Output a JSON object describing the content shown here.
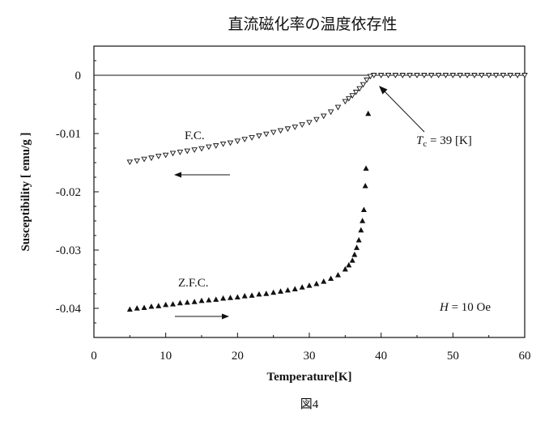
{
  "chart_data": {
    "type": "scatter",
    "title": "直流磁化率の温度依存性",
    "caption": "図4",
    "xlabel": "Temperature[K]",
    "ylabel": "Susceptibility [ emu/g ]",
    "xlim": [
      0,
      60
    ],
    "ylim": [
      -0.045,
      0.005
    ],
    "x_ticks": [
      0,
      10,
      20,
      30,
      40,
      50,
      60
    ],
    "y_ticks": [
      0,
      -0.01,
      -0.02,
      -0.03,
      -0.04
    ],
    "x_tick_labels": [
      "0",
      "10",
      "20",
      "30",
      "40",
      "50",
      "60"
    ],
    "y_tick_labels": [
      "0",
      "-0.01",
      "-0.02",
      "-0.03",
      "-0.04"
    ],
    "zero_line": true,
    "grid": false,
    "series": [
      {
        "marker": "triangle-down-open",
        "points": [
          [
            5,
            -0.0149
          ],
          [
            6,
            -0.0147
          ],
          [
            7,
            -0.0144
          ],
          [
            8,
            -0.0142
          ],
          [
            9,
            -0.0139
          ],
          [
            10,
            -0.0137
          ],
          [
            11,
            -0.0134
          ],
          [
            12,
            -0.0132
          ],
          [
            13,
            -0.013
          ],
          [
            14,
            -0.0128
          ],
          [
            15,
            -0.0126
          ],
          [
            16,
            -0.0123
          ],
          [
            17,
            -0.0121
          ],
          [
            18,
            -0.0118
          ],
          [
            19,
            -0.0116
          ],
          [
            20,
            -0.0113
          ],
          [
            21,
            -0.011
          ],
          [
            22,
            -0.0107
          ],
          [
            23,
            -0.0104
          ],
          [
            24,
            -0.0101
          ],
          [
            25,
            -0.0098
          ],
          [
            26,
            -0.0095
          ],
          [
            27,
            -0.0092
          ],
          [
            28,
            -0.0089
          ],
          [
            29,
            -0.0085
          ],
          [
            30,
            -0.0081
          ],
          [
            31,
            -0.0076
          ],
          [
            32,
            -0.007
          ],
          [
            33,
            -0.0063
          ],
          [
            34,
            -0.0055
          ],
          [
            35,
            -0.0045
          ],
          [
            35.5,
            -0.004
          ],
          [
            36,
            -0.0035
          ],
          [
            36.5,
            -0.0029
          ],
          [
            37,
            -0.0023
          ],
          [
            37.5,
            -0.0016
          ],
          [
            38,
            -0.0008
          ],
          [
            38.5,
            -0.0002
          ],
          [
            39,
            0.0
          ],
          [
            40,
            0.0
          ],
          [
            41,
            0.0
          ],
          [
            42,
            0.0
          ],
          [
            43,
            0.0
          ],
          [
            44,
            0.0
          ],
          [
            45,
            0.0
          ],
          [
            46,
            0.0
          ],
          [
            47,
            0.0
          ],
          [
            48,
            0.0
          ],
          [
            49,
            0.0
          ],
          [
            50,
            0.0
          ],
          [
            51,
            0.0
          ],
          [
            52,
            0.0
          ],
          [
            53,
            0.0
          ],
          [
            54,
            0.0
          ],
          [
            55,
            0.0
          ],
          [
            56,
            0.0
          ],
          [
            57,
            0.0
          ],
          [
            58,
            0.0
          ],
          [
            59,
            0.0
          ],
          [
            60,
            0.0
          ]
        ]
      },
      {
        "marker": "triangle-up-filled",
        "points": [
          [
            5,
            -0.0402
          ],
          [
            6,
            -0.04
          ],
          [
            7,
            -0.0399
          ],
          [
            8,
            -0.0397
          ],
          [
            9,
            -0.0396
          ],
          [
            10,
            -0.0394
          ],
          [
            11,
            -0.0393
          ],
          [
            12,
            -0.0391
          ],
          [
            13,
            -0.039
          ],
          [
            14,
            -0.0389
          ],
          [
            15,
            -0.0387
          ],
          [
            16,
            -0.0386
          ],
          [
            17,
            -0.0385
          ],
          [
            18,
            -0.0383
          ],
          [
            19,
            -0.0382
          ],
          [
            20,
            -0.0381
          ],
          [
            21,
            -0.0379
          ],
          [
            22,
            -0.0378
          ],
          [
            23,
            -0.0376
          ],
          [
            24,
            -0.0375
          ],
          [
            25,
            -0.0373
          ],
          [
            26,
            -0.0371
          ],
          [
            27,
            -0.0369
          ],
          [
            28,
            -0.0367
          ],
          [
            29,
            -0.0364
          ],
          [
            30,
            -0.0361
          ],
          [
            31,
            -0.0358
          ],
          [
            32,
            -0.0354
          ],
          [
            33,
            -0.0349
          ],
          [
            34,
            -0.0343
          ],
          [
            35,
            -0.0333
          ],
          [
            35.5,
            -0.0326
          ],
          [
            36,
            -0.0318
          ],
          [
            36.3,
            -0.0308
          ],
          [
            36.6,
            -0.0296
          ],
          [
            36.9,
            -0.0283
          ],
          [
            37.2,
            -0.0266
          ],
          [
            37.4,
            -0.025
          ],
          [
            37.6,
            -0.0231
          ],
          [
            37.8,
            -0.019
          ],
          [
            37.9,
            -0.016
          ],
          [
            38.2,
            -0.0066
          ]
        ]
      }
    ],
    "annotations": {
      "fc_label": "F.C.",
      "zfc_label": "Z.F.C.",
      "tc_prefix": "T",
      "tc_sub": "c",
      "tc_value": " = 39 [K]",
      "h_prefix": "H",
      "h_value": " = 10 Oe"
    }
  }
}
